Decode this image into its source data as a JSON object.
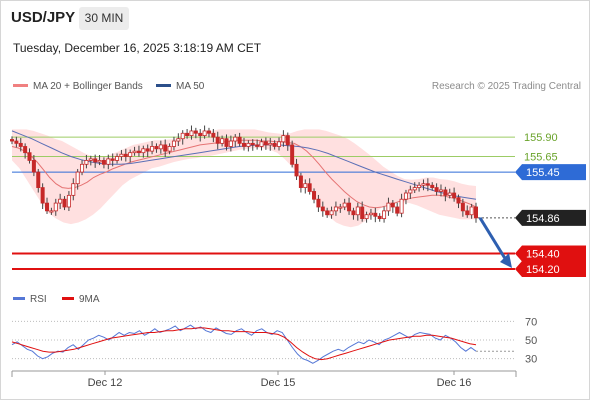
{
  "header": {
    "symbol": "USD/JPY",
    "timeframe": "30 MIN",
    "datetime": "Tuesday, December 16, 2025 3:18:19 AM CET"
  },
  "legend": {
    "ma20": "MA 20 + Bollinger Bands",
    "ma50": "MA 50",
    "credit": "Research © 2025 Trading Central",
    "rsi": "RSI",
    "rsi_ma": "9MA"
  },
  "colors": {
    "candle_up": "#c62828",
    "candle_down": "#c62828",
    "ma20": "#e57373",
    "bollinger_fill": "#ffd6d6",
    "ma50": "#5b6fb6",
    "resistance": "#9ccc65",
    "pivot": "#2e6bd6",
    "support": "#e01010",
    "current": "#222222",
    "arrow": "#2e5fb0",
    "rsi": "#5577d6",
    "rsi_ma": "#e01010"
  },
  "chart_data": [
    {
      "type": "candlestick",
      "ylim": [
        153.93,
        156.25
      ],
      "x_tick_labels": [
        "Dec 12",
        "Dec 15",
        "Dec 16"
      ],
      "levels": [
        {
          "label": "155.90",
          "value": 155.9,
          "kind": "resistance"
        },
        {
          "label": "155.65",
          "value": 155.65,
          "kind": "resistance"
        },
        {
          "label": "155.45",
          "value": 155.45,
          "kind": "pivot"
        },
        {
          "label": "154.86",
          "value": 154.86,
          "kind": "current"
        },
        {
          "label": "154.40",
          "value": 154.4,
          "kind": "support"
        },
        {
          "label": "154.20",
          "value": 154.2,
          "kind": "support"
        }
      ],
      "close": [
        155.85,
        155.82,
        155.78,
        155.7,
        155.6,
        155.45,
        155.25,
        155.05,
        154.95,
        154.95,
        155.05,
        155.1,
        155.0,
        155.15,
        155.3,
        155.45,
        155.55,
        155.6,
        155.62,
        155.58,
        155.6,
        155.55,
        155.62,
        155.6,
        155.65,
        155.68,
        155.65,
        155.7,
        155.72,
        155.7,
        155.75,
        155.72,
        155.78,
        155.75,
        155.8,
        155.72,
        155.78,
        155.85,
        155.88,
        155.95,
        155.92,
        155.98,
        155.95,
        155.92,
        155.98,
        155.95,
        155.9,
        155.82,
        155.88,
        155.78,
        155.85,
        155.9,
        155.82,
        155.78,
        155.82,
        155.8,
        155.78,
        155.84,
        155.8,
        155.82,
        155.78,
        155.84,
        155.92,
        155.8,
        155.55,
        155.4,
        155.25,
        155.3,
        155.2,
        155.1,
        155.0,
        154.95,
        154.9,
        154.95,
        155.0,
        155.0,
        155.05,
        154.95,
        154.9,
        155.0,
        154.85,
        154.9,
        154.92,
        154.88,
        154.85,
        154.95,
        155.05,
        155.0,
        154.92,
        155.1,
        155.18,
        155.22,
        155.25,
        155.28,
        155.3,
        155.28,
        155.25,
        155.2,
        155.22,
        155.15,
        155.18,
        155.12,
        155.05,
        154.95,
        154.9,
        155.0,
        154.86
      ],
      "ma20": [
        155.78,
        155.76,
        155.72,
        155.66,
        155.58,
        155.48,
        155.38,
        155.3,
        155.25,
        155.24,
        155.25,
        155.28,
        155.32,
        155.38,
        155.42,
        155.45,
        155.49,
        155.52,
        155.55,
        155.58,
        155.6,
        155.62,
        155.64,
        155.66,
        155.68,
        155.7,
        155.72,
        155.74,
        155.76,
        155.78,
        155.8,
        155.81,
        155.82,
        155.83,
        155.84,
        155.85,
        155.86,
        155.86,
        155.86,
        155.86,
        155.85,
        155.85,
        155.84,
        155.84,
        155.83,
        155.82,
        155.78,
        155.72,
        155.64,
        155.55,
        155.45,
        155.36,
        155.28,
        155.2,
        155.13,
        155.07,
        155.03,
        155.0,
        154.99,
        155.0,
        155.02,
        155.05,
        155.08,
        155.1,
        155.12,
        155.13,
        155.14,
        155.15,
        155.15,
        155.14,
        155.12,
        155.1,
        155.07,
        155.04,
        155.0
      ],
      "ma50": [
        155.98,
        155.93,
        155.88,
        155.82,
        155.76,
        155.7,
        155.65,
        155.61,
        155.58,
        155.56,
        155.55,
        155.55,
        155.56,
        155.58,
        155.6,
        155.62,
        155.64,
        155.66,
        155.68,
        155.7,
        155.72,
        155.74,
        155.76,
        155.78,
        155.79,
        155.8,
        155.8,
        155.8,
        155.79,
        155.78,
        155.76,
        155.73,
        155.69,
        155.64,
        155.59,
        155.54,
        155.49,
        155.44,
        155.4,
        155.36,
        155.32,
        155.28,
        155.24,
        155.2,
        155.17,
        155.14,
        155.12,
        155.1
      ],
      "bollinger_upper": [
        156.0,
        156.0,
        156.0,
        155.98,
        155.95,
        155.92,
        155.88,
        155.85,
        155.8,
        155.75,
        155.7,
        155.66,
        155.64,
        155.65,
        155.68,
        155.72,
        155.76,
        155.8,
        155.82,
        155.84,
        155.86,
        155.86,
        155.87,
        155.88,
        155.9,
        155.92,
        155.94,
        155.96,
        155.98,
        156.0,
        156.0,
        156.0,
        156.0,
        156.0,
        156.0,
        155.98,
        155.96,
        155.95,
        155.94,
        155.95,
        155.98,
        156.0,
        156.0,
        156.0,
        155.98,
        155.95,
        155.92,
        155.88,
        155.82,
        155.75,
        155.68,
        155.6,
        155.52,
        155.46,
        155.4,
        155.36,
        155.35,
        155.36,
        155.38,
        155.38,
        155.36,
        155.35,
        155.33,
        155.3,
        155.28,
        155.27
      ],
      "bollinger_lower": [
        155.6,
        155.5,
        155.35,
        155.2,
        155.05,
        154.92,
        154.85,
        154.8,
        154.78,
        154.8,
        154.84,
        154.9,
        154.98,
        155.08,
        155.18,
        155.28,
        155.35,
        155.4,
        155.45,
        155.5,
        155.52,
        155.55,
        155.58,
        155.6,
        155.62,
        155.63,
        155.65,
        155.66,
        155.68,
        155.7,
        155.72,
        155.74,
        155.75,
        155.76,
        155.76,
        155.74,
        155.7,
        155.62,
        155.52,
        155.4,
        155.28,
        155.14,
        155.0,
        154.88,
        154.8,
        154.76,
        154.74,
        154.76,
        154.82,
        154.9,
        154.98,
        155.04,
        155.06,
        155.06,
        155.05,
        155.02,
        154.98,
        154.94,
        154.9,
        154.88,
        154.86,
        154.84,
        154.84,
        154.84
      ]
    },
    {
      "type": "line",
      "ylim": [
        20,
        80
      ],
      "y_ticks": [
        70,
        50,
        30
      ],
      "series": [
        {
          "name": "RSI",
          "values": [
            45,
            48,
            44,
            40,
            38,
            33,
            30,
            32,
            36,
            38,
            37,
            42,
            45,
            40,
            45,
            50,
            52,
            55,
            53,
            50,
            54,
            58,
            55,
            58,
            57,
            60,
            55,
            58,
            62,
            58,
            60,
            62,
            65,
            60,
            63,
            66,
            62,
            64,
            60,
            58,
            63,
            60,
            57,
            56,
            60,
            62,
            58,
            55,
            60,
            62,
            58,
            56,
            60,
            58,
            50,
            42,
            35,
            30,
            28,
            25,
            28,
            32,
            35,
            38,
            40,
            38,
            42,
            45,
            48,
            46,
            50,
            48,
            45,
            50,
            52,
            55,
            58,
            55,
            52,
            56,
            58,
            57,
            56,
            52,
            50,
            55,
            52,
            48,
            42,
            38,
            42,
            38
          ]
        },
        {
          "name": "9MA",
          "values": [
            48,
            46,
            44,
            42,
            40,
            38,
            37,
            37,
            38,
            39,
            40,
            42,
            44,
            46,
            48,
            50,
            52,
            53,
            54,
            55,
            56,
            57,
            58,
            58,
            59,
            60,
            60,
            61,
            62,
            62,
            63,
            63,
            62,
            61,
            60,
            60,
            59,
            59,
            59,
            58,
            58,
            58,
            57,
            56,
            53,
            48,
            42,
            37,
            33,
            30,
            29,
            30,
            32,
            34,
            36,
            38,
            40,
            42,
            44,
            46,
            48,
            50,
            51,
            52,
            53,
            54,
            54,
            55,
            55,
            54,
            53,
            52,
            50,
            48,
            46,
            45
          ]
        }
      ]
    }
  ]
}
